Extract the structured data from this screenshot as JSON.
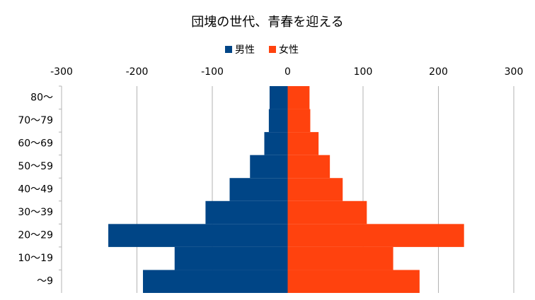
{
  "chart_data": {
    "type": "bar",
    "orientation": "horizontal",
    "title": "団塊の世代、青春を迎える",
    "categories": [
      "80～",
      "70～79",
      "60～69",
      "50～59",
      "40～49",
      "30～39",
      "20～29",
      "10～19",
      "～9"
    ],
    "series": [
      {
        "name": "男性",
        "color": "#004586",
        "values": [
          -24,
          -25,
          -31,
          -50,
          -77,
          -109,
          -238,
          -150,
          -192
        ]
      },
      {
        "name": "女性",
        "color": "#ff420e",
        "values": [
          29,
          30,
          41,
          56,
          73,
          105,
          234,
          140,
          175
        ]
      }
    ],
    "xlim": [
      -300,
      300
    ],
    "xticks": [
      -300,
      -200,
      -100,
      0,
      100,
      200,
      300
    ],
    "grid": true,
    "legend": "top"
  }
}
